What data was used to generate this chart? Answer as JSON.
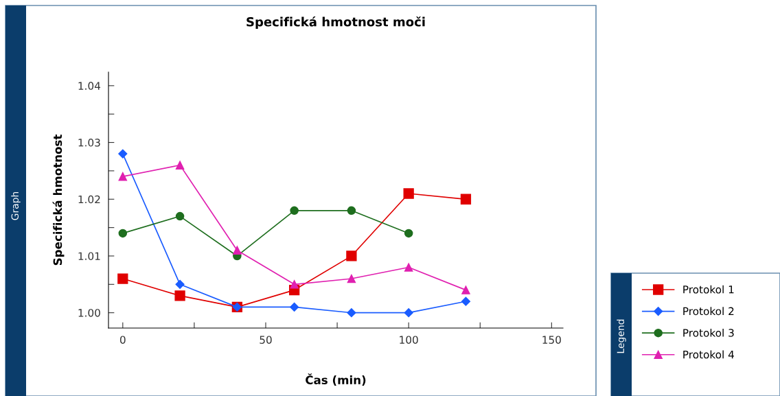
{
  "chart_data": {
    "type": "line",
    "title": "Specifická hmotnost moči",
    "xlabel": "Čas (min)",
    "ylabel": "Specifická hmotnost",
    "x": [
      0,
      20,
      40,
      60,
      80,
      100,
      120
    ],
    "series": [
      {
        "name": "Protokol 1",
        "color": "#e00000",
        "marker": "square",
        "values": [
          1.006,
          1.003,
          1.001,
          1.004,
          1.01,
          1.021,
          1.02
        ]
      },
      {
        "name": "Protokol 2",
        "color": "#1a5cff",
        "marker": "diamond",
        "values": [
          1.028,
          1.005,
          1.001,
          1.001,
          1.0,
          1.0,
          1.002
        ]
      },
      {
        "name": "Protokol 3",
        "color": "#1e6e1e",
        "marker": "circle",
        "values": [
          1.014,
          1.017,
          1.01,
          1.018,
          1.018,
          1.014,
          null
        ]
      },
      {
        "name": "Protokol 4",
        "color": "#e020b0",
        "marker": "triangle",
        "values": [
          1.024,
          1.026,
          1.011,
          1.005,
          1.006,
          1.008,
          1.004
        ]
      }
    ],
    "xlim": [
      -5,
      154
    ],
    "ylim": [
      0.9973,
      1.0424
    ],
    "xticks": [
      0,
      {
        "value": 25,
        "label": null
      },
      50,
      {
        "value": 75,
        "label": null
      },
      100,
      {
        "value": 125,
        "label": null
      },
      150
    ],
    "yticks": [
      {
        "value": 1.0,
        "label": "1.00"
      },
      {
        "value": 1.005,
        "label": null
      },
      {
        "value": 1.01,
        "label": "1.01"
      },
      {
        "value": 1.015,
        "label": null
      },
      {
        "value": 1.02,
        "label": "1.02"
      },
      {
        "value": 1.025,
        "label": null
      },
      {
        "value": 1.03,
        "label": "1.03"
      },
      {
        "value": 1.035,
        "label": null
      },
      {
        "value": 1.04,
        "label": "1.04"
      }
    ],
    "grid": false,
    "legend": "bottom right",
    "legend_title": "Legend",
    "line_style": "solid",
    "annotations": [
      "Graph"
    ]
  }
}
